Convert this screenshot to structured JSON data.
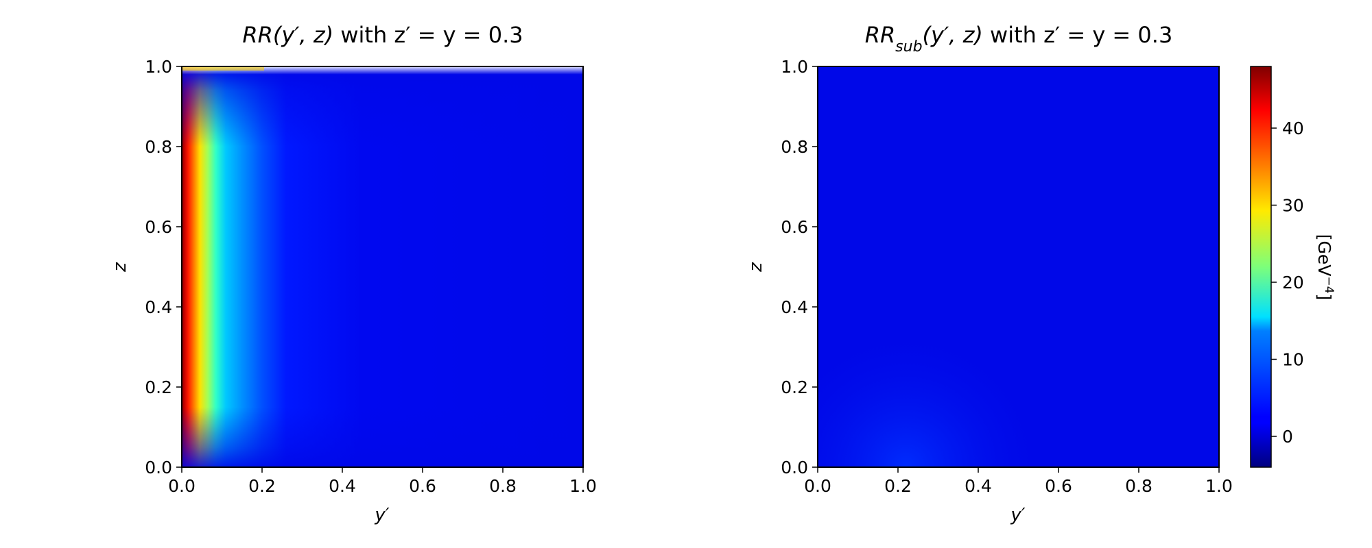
{
  "chart_data": [
    {
      "type": "heatmap",
      "title_base": "RR",
      "title_sub": "",
      "title_args": "(y′, z)",
      "title_condition": " with z′ = y = 0.3",
      "xlabel": "y′",
      "ylabel": "z",
      "xlim": [
        0.0,
        1.0
      ],
      "ylim": [
        0.0,
        1.0
      ],
      "xticks": [
        "0.0",
        "0.2",
        "0.4",
        "0.6",
        "0.8",
        "1.0"
      ],
      "yticks": [
        "0.0",
        "0.2",
        "0.4",
        "0.6",
        "0.8",
        "1.0"
      ],
      "colormap": "jet",
      "field_description": "large values (~45) along y′≈0 fading to ~1 for y′>0.25",
      "peak_value": 47,
      "background_value": 1
    },
    {
      "type": "heatmap",
      "title_base": "RR",
      "title_sub": "sub",
      "title_args": "(y′, z)",
      "title_condition": " with z′ = y = 0.3",
      "xlabel": "y′",
      "ylabel": "z",
      "xlim": [
        0.0,
        1.0
      ],
      "ylim": [
        0.0,
        1.0
      ],
      "xticks": [
        "0.0",
        "0.2",
        "0.4",
        "0.6",
        "0.8",
        "1.0"
      ],
      "yticks": [
        "0.0",
        "0.2",
        "0.4",
        "0.6",
        "0.8",
        "1.0"
      ],
      "colormap": "jet",
      "field_description": "nearly uniform ~1, slight rise to ~3 near y′≈0.1, z≈0",
      "peak_value": 3,
      "background_value": 1
    }
  ],
  "colorbar": {
    "label": "[GeV",
    "label_exp": "−4",
    "label_close": "]",
    "range": [
      -4,
      48
    ],
    "ticks": [
      {
        "value": 0,
        "label": "0"
      },
      {
        "value": 10,
        "label": "10"
      },
      {
        "value": 20,
        "label": "20"
      },
      {
        "value": 30,
        "label": "30"
      },
      {
        "value": 40,
        "label": "40"
      }
    ],
    "colormap": "jet"
  }
}
